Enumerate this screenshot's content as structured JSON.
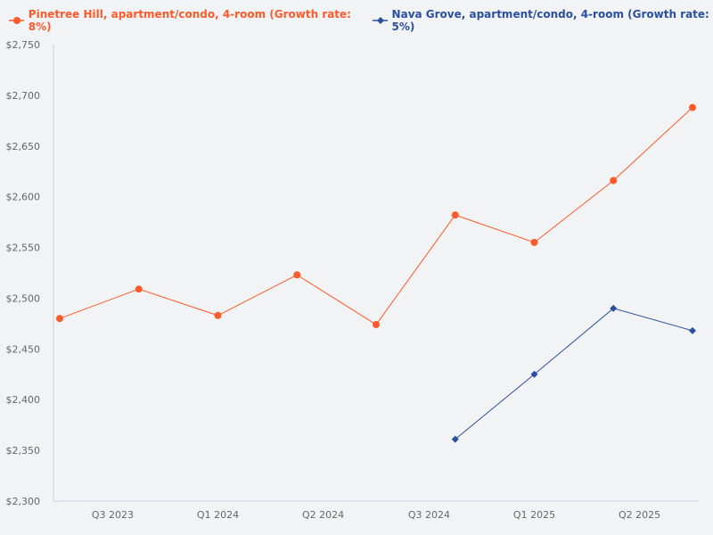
{
  "chart_data": {
    "type": "line",
    "title": "",
    "xlabel": "",
    "ylabel": "",
    "ylim": [
      2300,
      2750
    ],
    "yticks": [
      2300,
      2350,
      2400,
      2450,
      2500,
      2550,
      2600,
      2650,
      2700,
      2750
    ],
    "ytick_labels": [
      "$2,300",
      "$2,350",
      "$2,400",
      "$2,450",
      "$2,500",
      "$2,550",
      "$2,600",
      "$2,650",
      "$2,700",
      "$2,750"
    ],
    "x": [
      0,
      1,
      2,
      3,
      4,
      5,
      6,
      7,
      8
    ],
    "xticks": [
      0.67,
      2,
      3.33,
      4.67,
      6,
      7.33
    ],
    "xtick_labels": [
      "Q3 2023",
      "Q1 2024",
      "Q2 2024",
      "Q3 2024",
      "Q1 2025",
      "Q2 2025"
    ],
    "grid": false,
    "legend_position": "top-left",
    "series": [
      {
        "name": "Pinetree Hill, apartment/condo, 4-room (Growth rate: 8%)",
        "color": "#fc5a2a",
        "marker": "circle",
        "x": [
          0,
          1,
          2,
          3,
          4,
          5,
          6,
          7,
          8
        ],
        "values": [
          2480,
          2509,
          2483,
          2523,
          2474,
          2582,
          2555,
          2616,
          2688
        ]
      },
      {
        "name": "Nava Grove, apartment/condo, 4-room (Growth rate: 5%)",
        "color": "#2a4fa0",
        "marker": "diamond",
        "x": [
          5,
          6,
          7,
          8
        ],
        "values": [
          2361,
          2425,
          2490,
          2468
        ]
      }
    ]
  }
}
